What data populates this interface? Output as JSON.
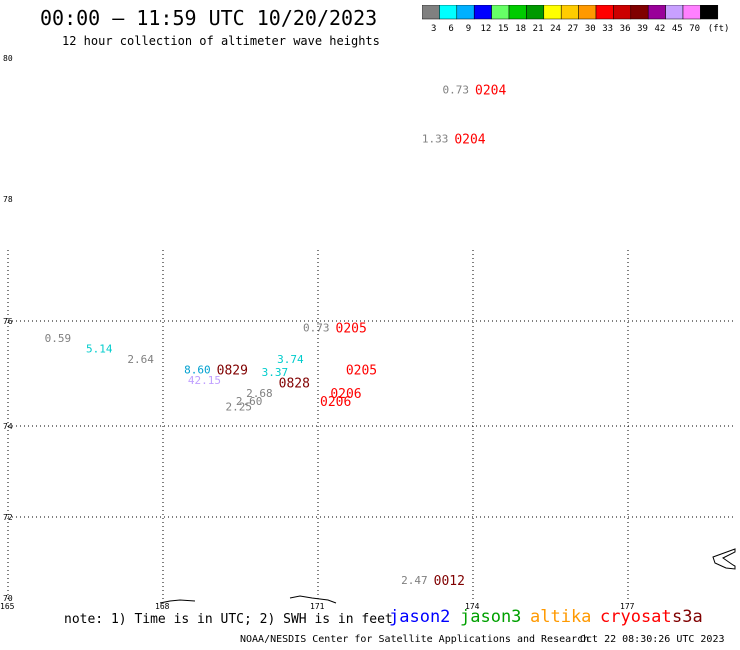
{
  "header": {
    "title": "00:00 – 11:59 UTC 10/20/2023",
    "subtitle": "12 hour collection of altimeter wave heights"
  },
  "legend": {
    "unit": "(ft)",
    "swatches": [
      {
        "label": "3",
        "color": "#808080"
      },
      {
        "label": "6",
        "color": "#00ffff"
      },
      {
        "label": "9",
        "color": "#00b0ff"
      },
      {
        "label": "12",
        "color": "#0000ff"
      },
      {
        "label": "15",
        "color": "#66ff66"
      },
      {
        "label": "18",
        "color": "#00cc00"
      },
      {
        "label": "21",
        "color": "#009900"
      },
      {
        "label": "24",
        "color": "#ffff00"
      },
      {
        "label": "27",
        "color": "#ffcc00"
      },
      {
        "label": "30",
        "color": "#ff9900"
      },
      {
        "label": "33",
        "color": "#ff0000"
      },
      {
        "label": "36",
        "color": "#cc0000"
      },
      {
        "label": "39",
        "color": "#800000"
      },
      {
        "label": "42",
        "color": "#990099"
      },
      {
        "label": "45",
        "color": "#c8a0ff"
      },
      {
        "label": "70",
        "color": "#ff80ff"
      },
      {
        "label": "",
        "color": "#000000"
      }
    ]
  },
  "chart_data": {
    "type": "scatter",
    "title": "00:00 – 11:59 UTC 10/20/2023",
    "subtitle": "12 hour collection of altimeter wave heights",
    "xlabel": "",
    "ylabel": "",
    "grid": true,
    "x_ticks": [
      "165",
      "168",
      "171",
      "174",
      "177"
    ],
    "y_ticks": [
      "80",
      "78",
      "76",
      "74",
      "72",
      "70"
    ],
    "y_lim": [
      70,
      80
    ],
    "observations": [
      {
        "swh": "0.73",
        "time": "0204",
        "x": 174.0,
        "y": 79.5,
        "swh_color": "#808080",
        "time_color": "#ff0000"
      },
      {
        "swh": "1.33",
        "time": "0204",
        "x": 173.6,
        "y": 78.8,
        "swh_color": "#808080",
        "time_color": "#ff0000"
      },
      {
        "swh": "0.73",
        "time": "0205",
        "x": 171.3,
        "y": 75.8,
        "swh_color": "#808080",
        "time_color": "#ff0000"
      },
      {
        "swh": "0.59",
        "time": "",
        "x": 166.3,
        "y": 75.6,
        "swh_color": "#808080",
        "time_color": "#ff0000"
      },
      {
        "swh": "5.14",
        "time": "",
        "x": 167.1,
        "y": 75.4,
        "swh_color": "#00cccc",
        "time_color": "#ff0000"
      },
      {
        "swh": "2.64",
        "time": "",
        "x": 167.9,
        "y": 75.2,
        "swh_color": "#808080",
        "time_color": "#ff0000"
      },
      {
        "swh": "8.60",
        "time": "0829",
        "x": 169.0,
        "y": 75.0,
        "swh_color": "#00a0d0",
        "time_color": "#800000"
      },
      {
        "swh": "42.15",
        "time": "",
        "x": 169.2,
        "y": 74.8,
        "swh_color": "#c0a0ff",
        "time_color": "#800000"
      },
      {
        "swh": "",
        "time": "0828",
        "x": 170.2,
        "y": 74.75,
        "swh_color": "#808080",
        "time_color": "#800000"
      },
      {
        "swh": "3.74",
        "time": "",
        "x": 170.8,
        "y": 75.2,
        "swh_color": "#00cccc",
        "time_color": "#ff0000"
      },
      {
        "swh": "3.37",
        "time": "",
        "x": 170.5,
        "y": 74.95,
        "swh_color": "#00cccc",
        "time_color": "#ff0000"
      },
      {
        "swh": "",
        "time": "0205",
        "x": 171.5,
        "y": 75.0,
        "swh_color": "#808080",
        "time_color": "#ff0000"
      },
      {
        "swh": "",
        "time": "0206",
        "x": 171.2,
        "y": 74.55,
        "swh_color": "#808080",
        "time_color": "#ff0000"
      },
      {
        "swh": "",
        "time": "0206",
        "x": 171.0,
        "y": 74.4,
        "swh_color": "#808080",
        "time_color": "#ff0000"
      },
      {
        "swh": "2.68",
        "time": "",
        "x": 170.2,
        "y": 74.55,
        "swh_color": "#808080",
        "time_color": "#ff0000"
      },
      {
        "swh": "2.60",
        "time": "",
        "x": 170.0,
        "y": 74.4,
        "swh_color": "#808080",
        "time_color": "#ff0000"
      },
      {
        "swh": "2.25",
        "time": "",
        "x": 169.8,
        "y": 74.3,
        "swh_color": "#808080",
        "time_color": "#ff0000"
      },
      {
        "swh": "2.47",
        "time": "0012",
        "x": 173.2,
        "y": 70.35,
        "swh_color": "#808080",
        "time_color": "#800000"
      }
    ]
  },
  "footer": {
    "note": "note: 1) Time is in UTC; 2) SWH is in feet",
    "missions": [
      {
        "label": "jason2",
        "color": "#0000ff"
      },
      {
        "label": "jason3",
        "color": "#00a000"
      },
      {
        "label": "altika",
        "color": "#ff9900"
      },
      {
        "label": "cryosat",
        "color": "#ff0000"
      },
      {
        "label": "s3a",
        "color": "#800000"
      }
    ],
    "credit": "NOAA/NESDIS Center for Satellite Applications and Research",
    "timestamp": "Oct 22 08:30:26 UTC 2023"
  }
}
